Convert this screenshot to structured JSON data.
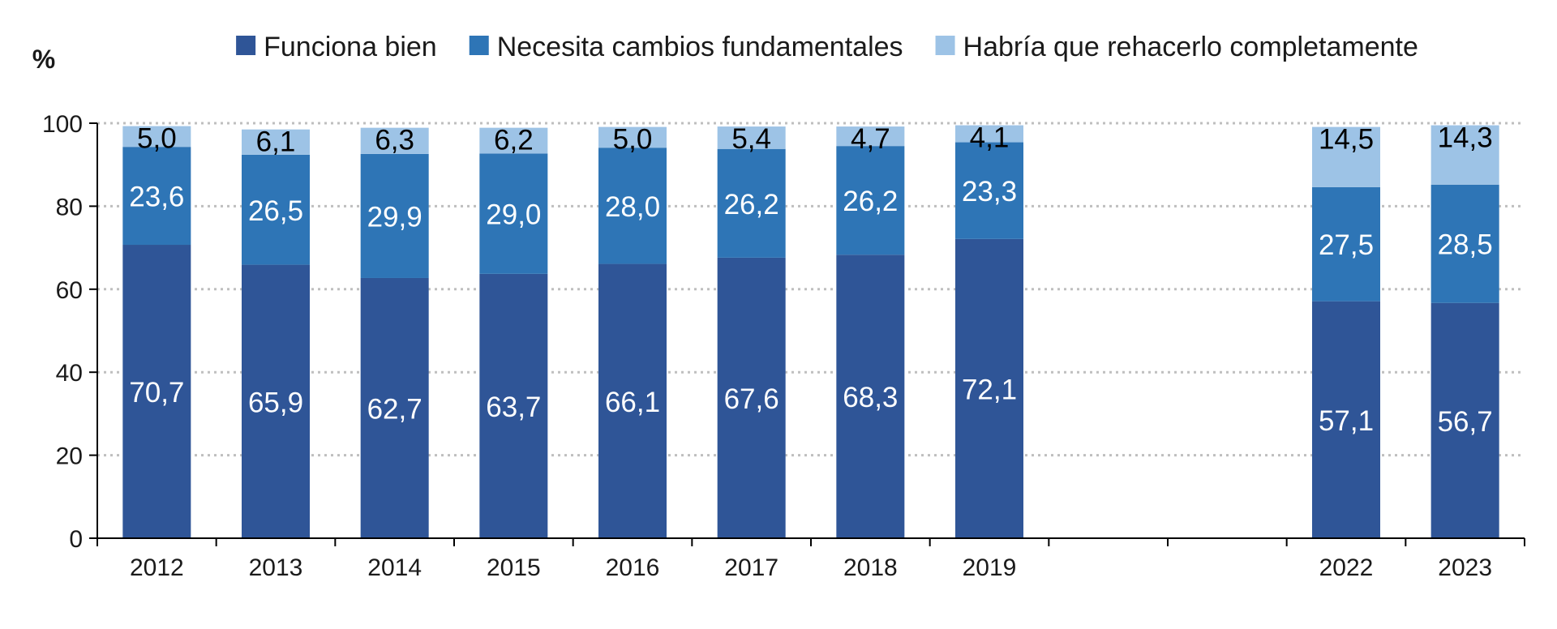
{
  "chart_data": {
    "type": "bar",
    "stacked": true,
    "ylabel": "%",
    "ylim": [
      0,
      100
    ],
    "yticks": [
      0,
      20,
      40,
      60,
      80,
      100
    ],
    "grid": "horizontal-dotted",
    "legend_position": "top",
    "categories": [
      "2012",
      "2013",
      "2014",
      "2015",
      "2016",
      "2017",
      "2018",
      "2019",
      "",
      "",
      "2022",
      "2023"
    ],
    "series": [
      {
        "name": "Funciona bien",
        "color": "#2f5597",
        "label_color": "#ffffff",
        "values": [
          70.7,
          65.9,
          62.7,
          63.7,
          66.1,
          67.6,
          68.3,
          72.1,
          null,
          null,
          57.1,
          56.7
        ],
        "labels": [
          "70,7",
          "65,9",
          "62,7",
          "63,7",
          "66,1",
          "67,6",
          "68,3",
          "72,1",
          "",
          "",
          "57,1",
          "56,7"
        ]
      },
      {
        "name": "Necesita cambios fundamentales",
        "color": "#2e75b6",
        "label_color": "#ffffff",
        "values": [
          23.6,
          26.5,
          29.9,
          29.0,
          28.0,
          26.2,
          26.2,
          23.3,
          null,
          null,
          27.5,
          28.5
        ],
        "labels": [
          "23,6",
          "26,5",
          "29,9",
          "29,0",
          "28,0",
          "26,2",
          "26,2",
          "23,3",
          "",
          "",
          "27,5",
          "28,5"
        ]
      },
      {
        "name": "Habría que rehacerlo completamente",
        "color": "#9dc3e6",
        "label_color": "#000000",
        "values": [
          5.0,
          6.1,
          6.3,
          6.2,
          5.0,
          5.4,
          4.7,
          4.1,
          null,
          null,
          14.5,
          14.3
        ],
        "labels": [
          "5,0",
          "6,1",
          "6,3",
          "6,2",
          "5,0",
          "5,4",
          "4,7",
          "4,1",
          "",
          "",
          "14,5",
          "14,3"
        ]
      }
    ]
  }
}
